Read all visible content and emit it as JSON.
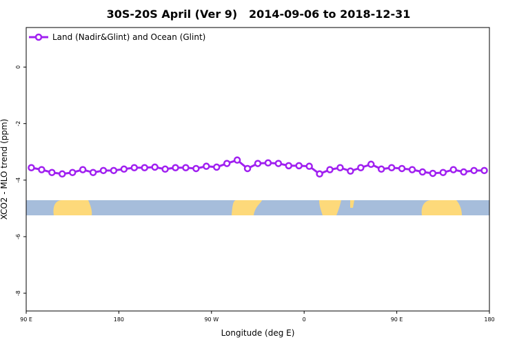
{
  "chart_data": {
    "type": "line",
    "title": "30S-20S April (Ver 9)   2014-09-06 to 2018-12-31",
    "xlabel": "Longitude (deg E)",
    "ylabel": "XCO2 - MLO trend (ppm)",
    "x": [
      95,
      105,
      115,
      125,
      135,
      145,
      155,
      165,
      175,
      185,
      195,
      205,
      215,
      225,
      235,
      245,
      255,
      265,
      275,
      285,
      295,
      305,
      315,
      325,
      335,
      345,
      355,
      365,
      375,
      385,
      395,
      405,
      415,
      425,
      435,
      445,
      455,
      465,
      475,
      485,
      495,
      505,
      515,
      525,
      535
    ],
    "series": [
      {
        "name": "Land (Nadir&Glint) and Ocean (Glint)",
        "color": "#a020f0",
        "values": [
          -3.56,
          -3.63,
          -3.73,
          -3.78,
          -3.73,
          -3.63,
          -3.73,
          -3.66,
          -3.66,
          -3.61,
          -3.56,
          -3.56,
          -3.54,
          -3.61,
          -3.56,
          -3.56,
          -3.59,
          -3.51,
          -3.54,
          -3.41,
          -3.29,
          -3.59,
          -3.41,
          -3.39,
          -3.41,
          -3.49,
          -3.49,
          -3.51,
          -3.78,
          -3.63,
          -3.56,
          -3.68,
          -3.56,
          -3.44,
          -3.61,
          -3.56,
          -3.59,
          -3.63,
          -3.71,
          -3.76,
          -3.73,
          -3.63,
          -3.71,
          -3.66,
          -3.66
        ]
      }
    ],
    "xlim": [
      90,
      540
    ],
    "xticks": [
      {
        "value": 90,
        "label": "90 E"
      },
      180,
      {
        "value": 270,
        "label": "90 W"
      },
      {
        "value": 360,
        "label": "0"
      },
      {
        "value": 450,
        "label": "90 E"
      },
      {
        "value": 540,
        "label": "180"
      }
    ],
    "ylim": [
      -8.63,
      1.4
    ],
    "yticks": [
      0,
      -2,
      -4,
      -6,
      -8
    ],
    "legend": "top-left"
  }
}
